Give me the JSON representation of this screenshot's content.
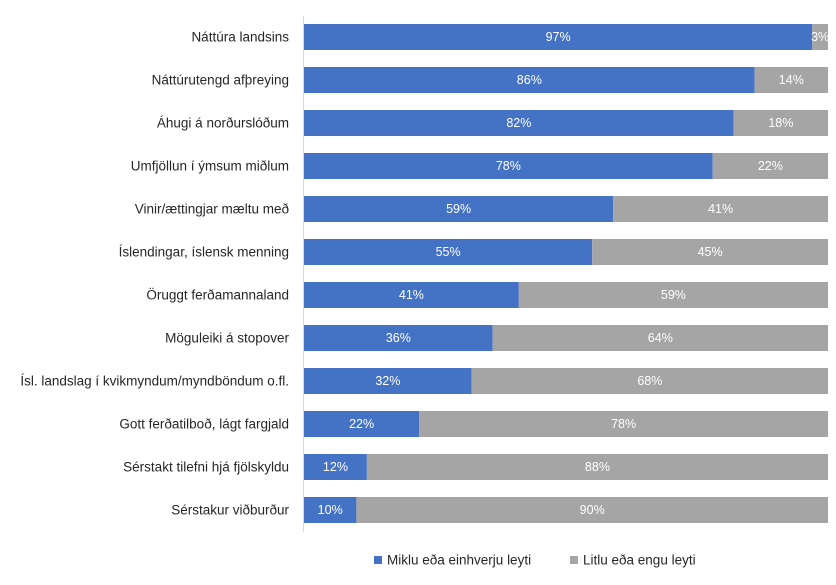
{
  "chart_data": {
    "type": "bar",
    "orientation": "horizontal",
    "stacked": true,
    "percent": true,
    "categories": [
      "Náttúra landsins",
      "Náttúrutengd afþreying",
      "Áhugi á norðurslóðum",
      "Umfjöllun í ýmsum miðlum",
      "Vinir/ættingjar mæltu með",
      "Íslendingar, íslensk menning",
      "Öruggt ferðamannaland",
      "Möguleiki á stopover",
      "Ísl. landslag í kvikmyndum/myndböndum o.fl.",
      "Gott ferðatilboð, lágt fargjald",
      "Sérstakt tilefni hjá fjölskyldu",
      "Sérstakur viðburður"
    ],
    "series": [
      {
        "name": "Miklu eða einhverju leyti",
        "color": "#4472C4",
        "values": [
          97,
          86,
          82,
          78,
          59,
          55,
          41,
          36,
          32,
          22,
          12,
          10
        ],
        "labels": [
          "97%",
          "86%",
          "82%",
          "78%",
          "59%",
          "55%",
          "41%",
          "36%",
          "32%",
          "22%",
          "12%",
          "10%"
        ]
      },
      {
        "name": "Litlu eða engu leyti",
        "color": "#A5A5A5",
        "values": [
          3,
          14,
          18,
          22,
          41,
          45,
          59,
          64,
          68,
          78,
          88,
          90
        ],
        "labels": [
          "3%",
          "14%",
          "18%",
          "22%",
          "41%",
          "45%",
          "59%",
          "64%",
          "68%",
          "78%",
          "88%",
          "90%"
        ]
      }
    ],
    "xlim": [
      0,
      100
    ],
    "grid": false,
    "legend_position": "bottom"
  }
}
